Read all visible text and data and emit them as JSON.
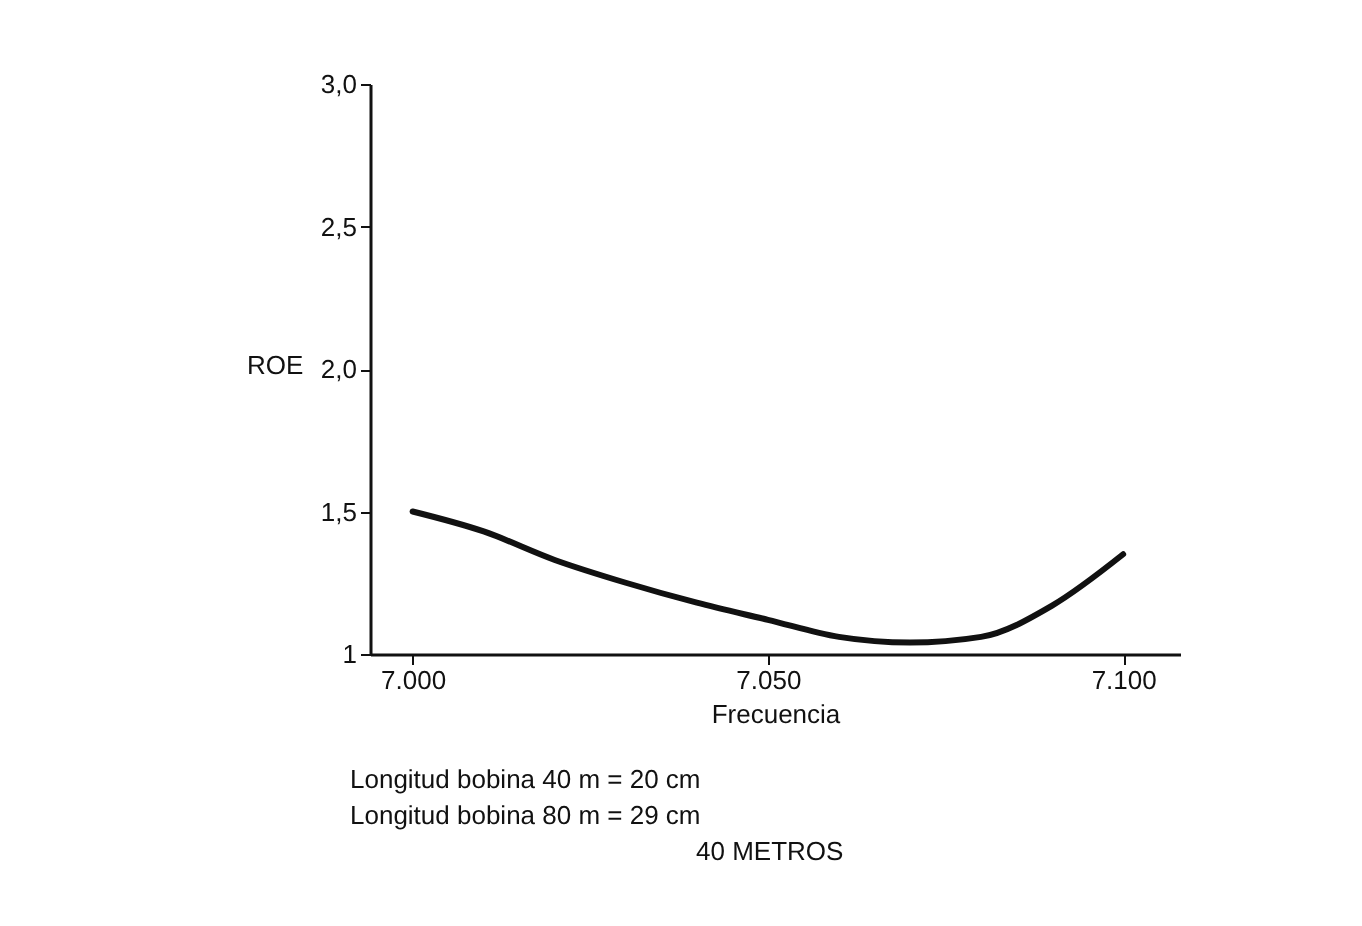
{
  "chart_data": {
    "type": "line",
    "xlabel": "Frecuencia",
    "ylabel": "ROE",
    "x": [
      7000,
      7010,
      7020,
      7030,
      7040,
      7050,
      7060,
      7070,
      7080,
      7090,
      7100
    ],
    "series": [
      {
        "color": "#111111",
        "values": [
          1.5,
          1.43,
          1.33,
          1.25,
          1.18,
          1.12,
          1.06,
          1.04,
          1.06,
          1.17,
          1.35
        ]
      }
    ],
    "xlim": [
      6994,
      7108
    ],
    "xticks": [
      {
        "value": 7000,
        "label": "7.000"
      },
      {
        "value": 7050,
        "label": "7.050"
      },
      {
        "value": 7100,
        "label": "7.100"
      }
    ],
    "ylim": [
      1,
      3
    ],
    "yticks": [
      1,
      {
        "value": 1.5,
        "label": "1,5"
      },
      {
        "value": 2.0,
        "label": "2,0"
      },
      {
        "value": 2.5,
        "label": "2,5"
      },
      {
        "value": 3.0,
        "label": "3,0"
      }
    ],
    "grid": false,
    "annotations": [
      "Longitud bobina 40 m = 20 cm",
      "Longitud bobina 80 m = 29 cm",
      "40 METROS"
    ]
  }
}
